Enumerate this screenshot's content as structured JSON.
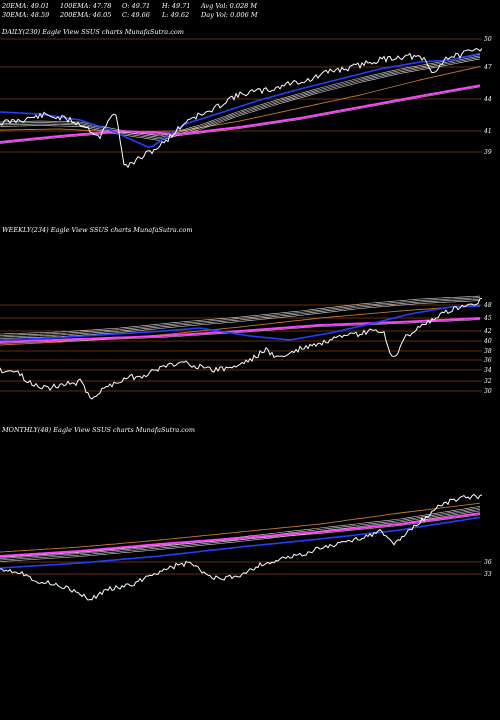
{
  "header": {
    "row1": [
      "20EMA: 49.01",
      "100EMA: 47.78",
      "O: 49.71",
      "H: 49.71",
      "Avg Vol: 0.028  M"
    ],
    "row2": [
      "30EMA: 48.59",
      "200EMA: 46.05",
      "C: 49.66",
      "L: 49.62",
      "Day Vol: 0.006  M"
    ]
  },
  "colors": {
    "background": "#000000",
    "price": "#ffffff",
    "ema_fast": "#2040ff",
    "ema_mid": "#d8d8d8",
    "ema_slow": "#c87828",
    "ema_long": "#ff40ff",
    "grid": "#8b3a10"
  },
  "chart_data": [
    {
      "type": "line",
      "title": "DAILY(230) Eagle  View  SSUS charts MunafaSutra.com",
      "levels": [
        50,
        47,
        44,
        41,
        39
      ],
      "tick_labels": [
        "50",
        "47",
        "44",
        "41",
        "39"
      ]
    },
    {
      "type": "line",
      "title": "WEEKLY(234) Eagle  View  SSUS charts MunafaSutra.com",
      "levels": [
        48,
        45,
        42,
        40,
        38,
        36,
        34,
        32,
        30
      ],
      "tick_labels": [
        "48",
        "45",
        "42",
        "40",
        "38",
        "36",
        "34",
        "32",
        "30"
      ]
    },
    {
      "type": "line",
      "title": "MONTHLY(48) Eagle  View  SSUS charts MunafaSutra.com",
      "levels": [
        36,
        33
      ],
      "tick_labels": [
        "36",
        "33"
      ]
    }
  ]
}
